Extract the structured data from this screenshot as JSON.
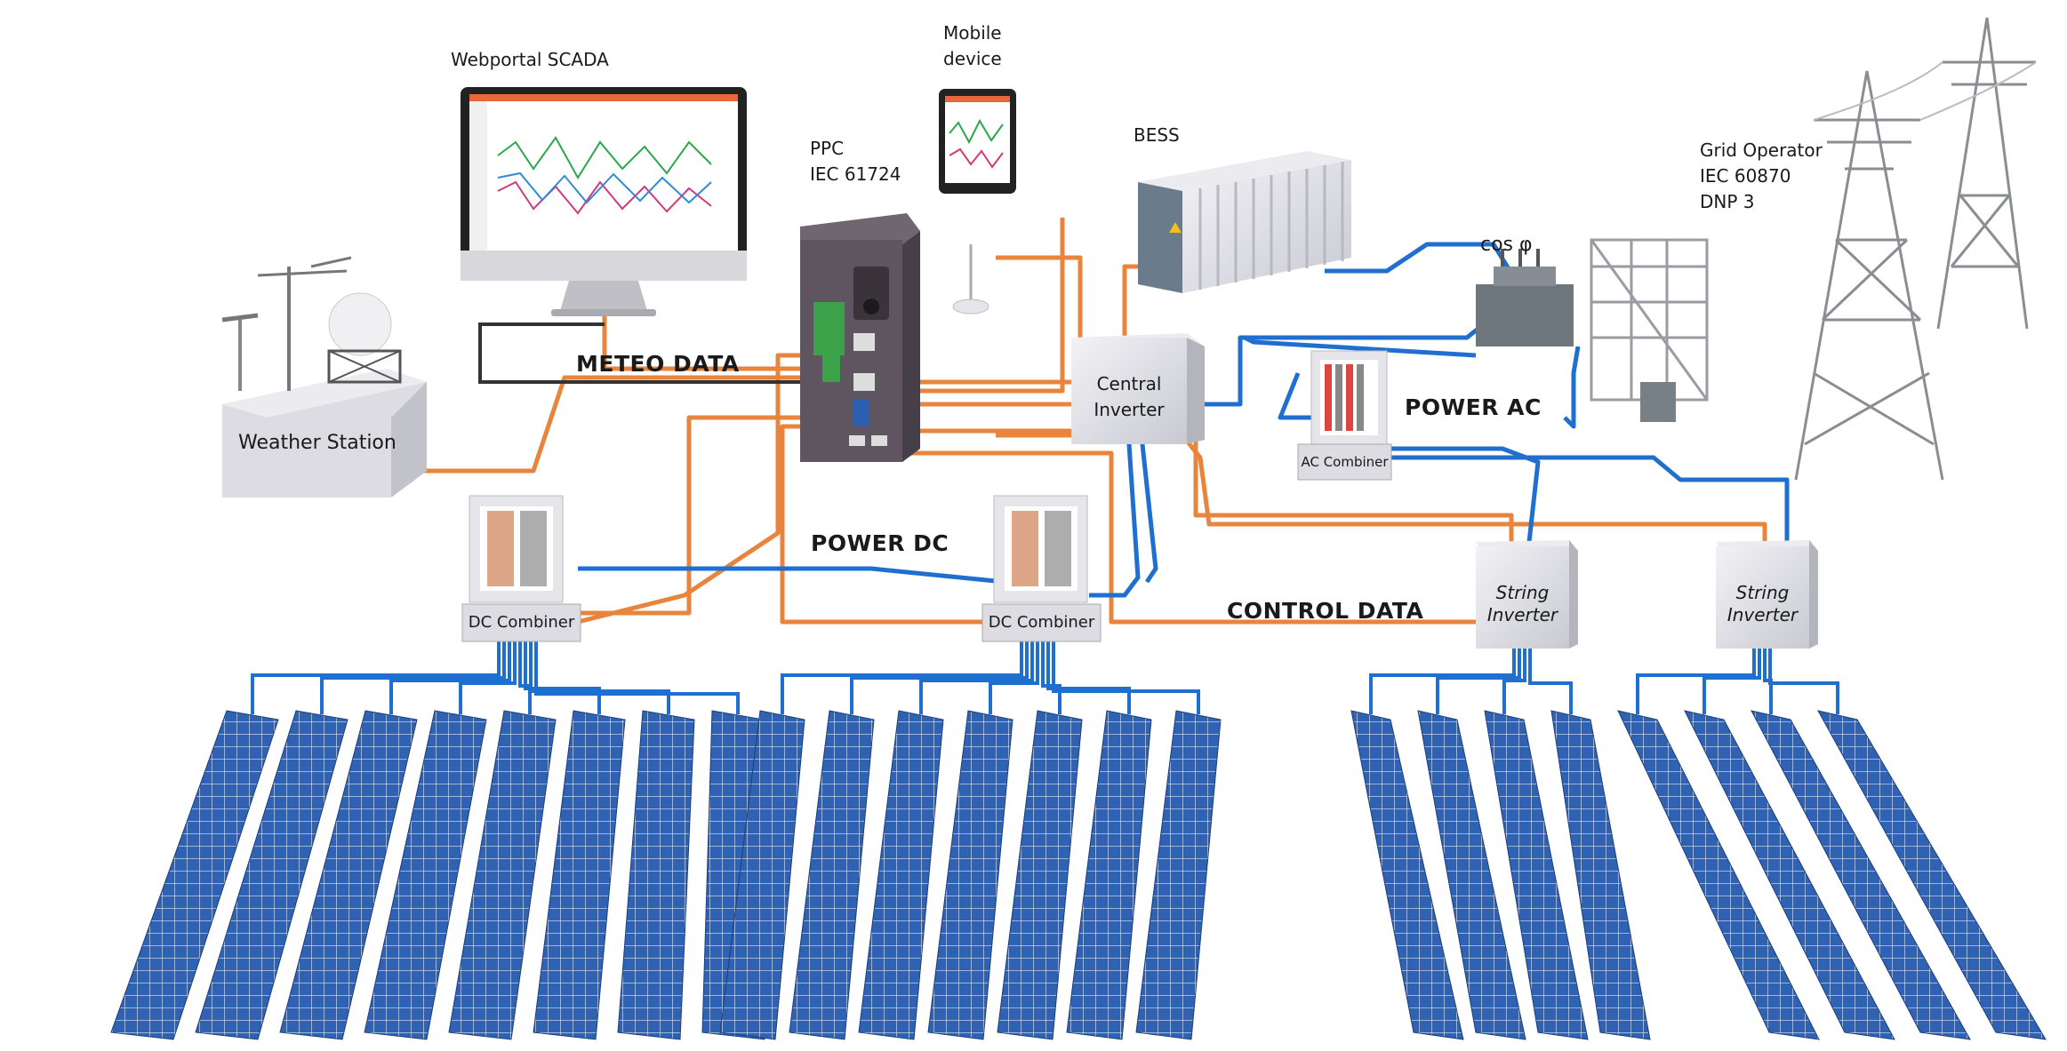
{
  "labels": {
    "webportal": "Webportal SCADA",
    "mobile_line1": "Mobile",
    "mobile_line2": "device",
    "ppc_line1": "PPC",
    "ppc_line2": "IEC 61724",
    "bess": "BESS",
    "grid_line1": "Grid Operator",
    "grid_line2": "IEC 60870",
    "grid_line3": "DNP 3",
    "cos_phi": "cos φ",
    "meteo_data": "METEO DATA",
    "weather_station": "Weather Station",
    "central_line1": "Central",
    "central_line2": "Inverter",
    "power_ac": "POWER AC",
    "ac_combiner": "AC Combiner",
    "power_dc": "POWER DC",
    "control_data": "CONTROL DATA",
    "dc_combiner_1": "DC Combiner",
    "dc_combiner_2": "DC Combiner",
    "string1_line1": "String",
    "string1_line2": "Inverter",
    "string2_line1": "String",
    "string2_line2": "Inverter"
  },
  "colors": {
    "power_line": "#1f6fd1",
    "data_line": "#e8843c",
    "meteo_line": "#333333",
    "panel": "#2f62b3",
    "box": "#e4e4ea"
  }
}
